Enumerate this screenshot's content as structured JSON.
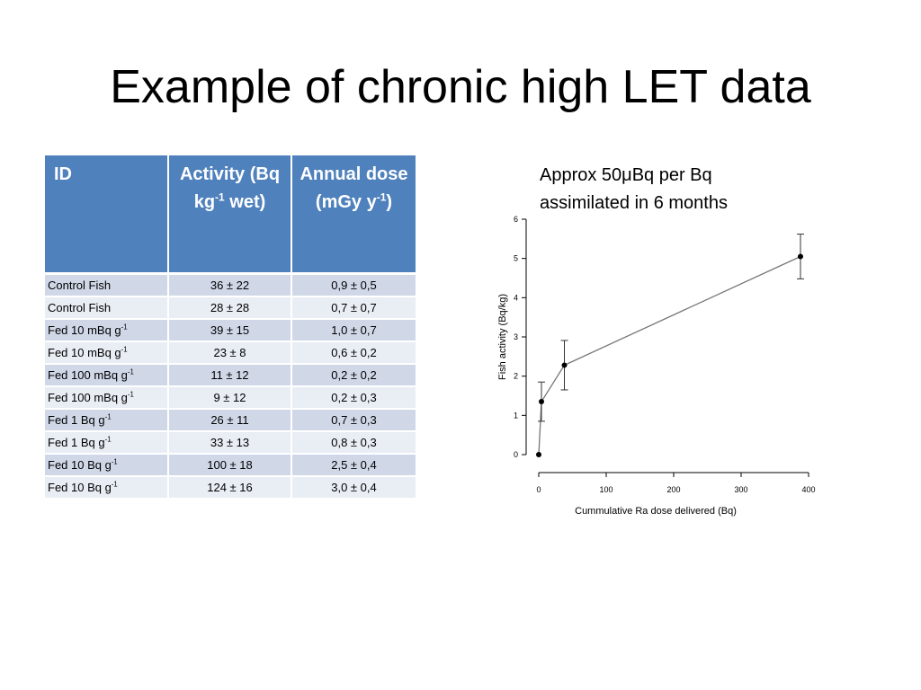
{
  "slide": {
    "title": "Example of chronic high LET data"
  },
  "table": {
    "headers": [
      {
        "main": "ID",
        "sup": "",
        "tail": ""
      },
      {
        "main": "Activity (Bq kg",
        "sup": "-1",
        "tail": " wet)"
      },
      {
        "main": "Annual dose (mGy y",
        "sup": "-1",
        "tail": ")"
      }
    ],
    "rows": [
      {
        "id": "Control Fish",
        "id_sup": "",
        "activity": "36 ± 22",
        "dose": "0,9 ± 0,5"
      },
      {
        "id": "Control Fish",
        "id_sup": "",
        "activity": "28 ± 28",
        "dose": "0,7 ± 0,7"
      },
      {
        "id": "Fed 10 mBq g",
        "id_sup": "-1",
        "activity": "39 ± 15",
        "dose": "1,0 ± 0,7"
      },
      {
        "id": "Fed 10 mBq g",
        "id_sup": "-1",
        "activity": "23 ± 8",
        "dose": "0,6 ± 0,2"
      },
      {
        "id": "Fed 100 mBq g",
        "id_sup": "-1",
        "activity": "11 ± 12",
        "dose": "0,2 ± 0,2"
      },
      {
        "id": "Fed 100 mBq g",
        "id_sup": "-1",
        "activity": "9 ± 12",
        "dose": "0,2 ± 0,3"
      },
      {
        "id": "Fed 1 Bq g",
        "id_sup": "-1",
        "activity": "26 ± 11",
        "dose": "0,7 ± 0,3"
      },
      {
        "id": "Fed 1 Bq g",
        "id_sup": "-1",
        "activity": "33 ± 13",
        "dose": "0,8 ± 0,3"
      },
      {
        "id": "Fed 10 Bq g",
        "id_sup": "-1",
        "activity": "100 ± 18",
        "dose": "2,5 ± 0,4"
      },
      {
        "id": "Fed 10 Bq g",
        "id_sup": "-1",
        "activity": "124 ± 16",
        "dose": "3,0 ± 0,4"
      }
    ],
    "colors": {
      "header": "#4f81bd",
      "row_odd": "#d0d8e8",
      "row_even": "#e9edf4"
    }
  },
  "caption": {
    "line1": "Approx 50μBq per Bq",
    "line2": "assimilated in 6 months"
  },
  "chart_data": {
    "type": "line",
    "title": "",
    "xlabel": "Cummulative Ra dose delivered (Bq)",
    "ylabel": "Fish activity (Bq/kg)",
    "xlim": [
      0,
      400
    ],
    "ylim": [
      0,
      6
    ],
    "xticks": [
      0,
      100,
      200,
      300,
      400
    ],
    "yticks": [
      0,
      1,
      2,
      3,
      4,
      5,
      6
    ],
    "grid": false,
    "series": [
      {
        "points": [
          {
            "x": 0,
            "y": 0,
            "err": 0
          },
          {
            "x": 4,
            "y": 1.35,
            "err": 0.5
          },
          {
            "x": 38,
            "y": 2.28,
            "err": 0.63
          },
          {
            "x": 388,
            "y": 5.05,
            "err": 0.57
          }
        ],
        "color": "#777777"
      }
    ]
  }
}
